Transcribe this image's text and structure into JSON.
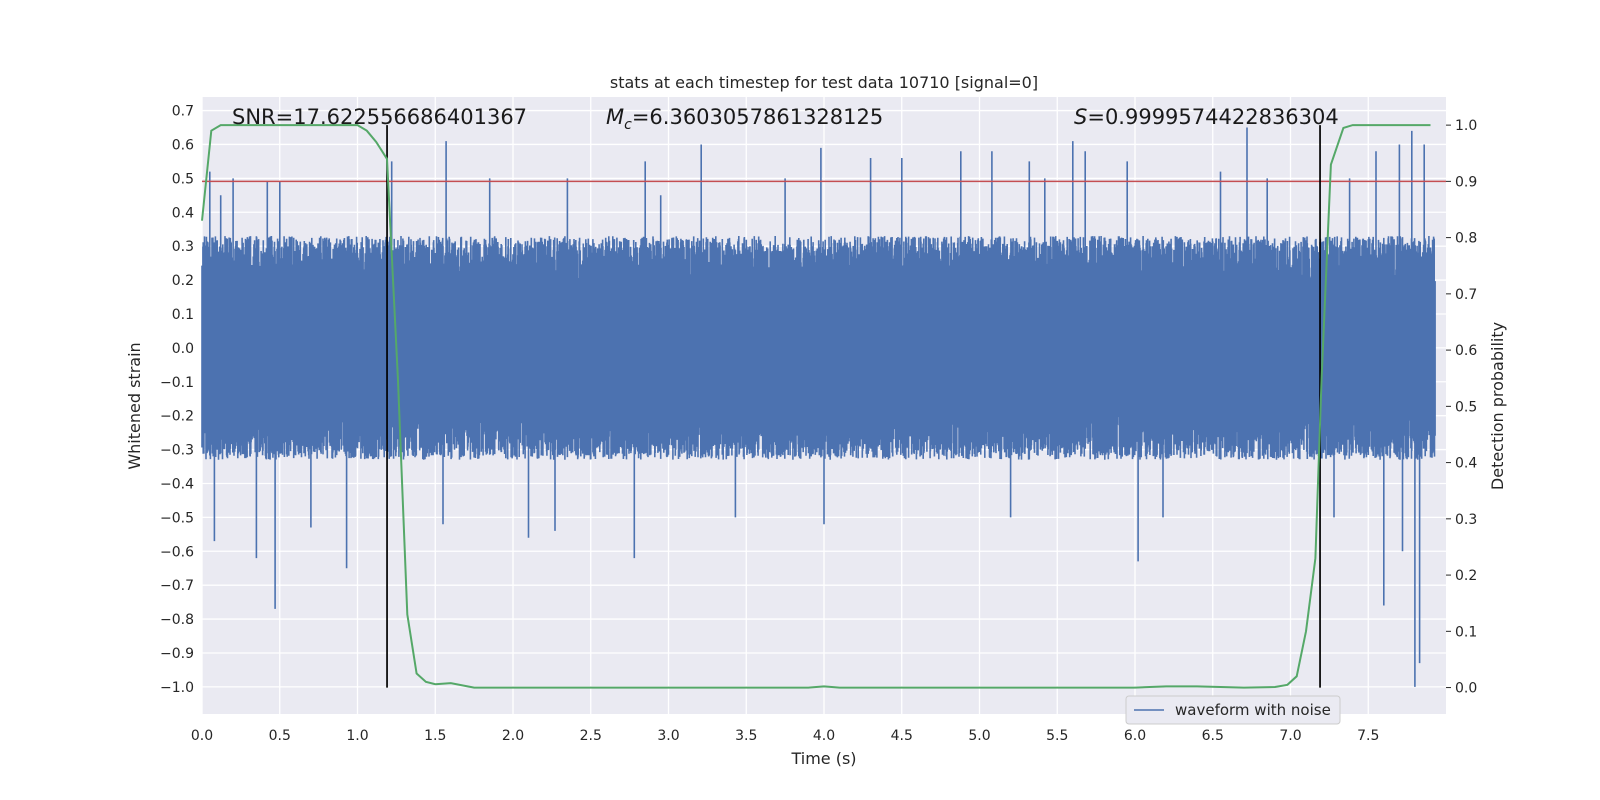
{
  "chart_data": {
    "type": "line",
    "title": "stats at each timestep for test data 10710 [signal=0]",
    "xlabel": "Time (s)",
    "ylabel_left": "Whitened strain",
    "ylabel_right": "Detection probability",
    "xlim": [
      0.0,
      8.0
    ],
    "ylim_left": [
      -1.08,
      0.74
    ],
    "ylim_right": [
      -0.047,
      1.05
    ],
    "x_ticks": [
      0.0,
      0.5,
      1.0,
      1.5,
      2.0,
      2.5,
      3.0,
      3.5,
      4.0,
      4.5,
      5.0,
      5.5,
      6.0,
      6.5,
      7.0,
      7.5
    ],
    "x_tick_labels": [
      "0.0",
      "0.5",
      "1.0",
      "1.5",
      "2.0",
      "2.5",
      "3.0",
      "3.5",
      "4.0",
      "4.5",
      "5.0",
      "5.5",
      "6.0",
      "6.5",
      "7.0",
      "7.5"
    ],
    "y_left_ticks": [
      0.7,
      0.6,
      0.5,
      0.4,
      0.3,
      0.2,
      0.1,
      0.0,
      -0.1,
      -0.2,
      -0.3,
      -0.4,
      -0.5,
      -0.6,
      -0.7,
      -0.8,
      -0.9,
      -1.0
    ],
    "y_left_tick_labels": [
      "0.7",
      "0.6",
      "0.5",
      "0.4",
      "0.3",
      "0.2",
      "0.1",
      "0.0",
      "−0.1",
      "−0.2",
      "−0.3",
      "−0.4",
      "−0.5",
      "−0.6",
      "−0.7",
      "−0.8",
      "−0.9",
      "−1.0"
    ],
    "y_right_ticks": [
      1.0,
      0.9,
      0.8,
      0.7,
      0.6,
      0.5,
      0.4,
      0.3,
      0.2,
      0.1,
      0.0
    ],
    "y_right_tick_labels": [
      "1.0",
      "0.9",
      "0.8",
      "0.7",
      "0.6",
      "0.5",
      "0.4",
      "0.3",
      "0.2",
      "0.1",
      "0.0"
    ],
    "grid": true,
    "annotations": {
      "snr": "SNR=17.622556686401367",
      "mc_symbol": "M",
      "mc_sub": "c",
      "mc_value": "=6.3603057861328125",
      "s_symbol": "S",
      "s_value": "=0.9999574422836304"
    },
    "threshold": {
      "value": 0.9,
      "axis": "right",
      "color": "#c44e52"
    },
    "vertical_markers": [
      1.19,
      7.19
    ],
    "series": [
      {
        "name": "waveform with noise",
        "axis": "left",
        "color": "#4c72b0",
        "style": "dense-noise",
        "typical_envelope": [
          -0.33,
          0.33
        ],
        "peaks": [
          [
            0.05,
            0.52
          ],
          [
            0.12,
            0.45
          ],
          [
            0.2,
            0.5
          ],
          [
            0.42,
            0.49
          ],
          [
            0.5,
            0.49
          ],
          [
            1.22,
            0.55
          ],
          [
            1.57,
            0.61
          ],
          [
            1.85,
            0.5
          ],
          [
            2.35,
            0.5
          ],
          [
            2.85,
            0.55
          ],
          [
            2.95,
            0.45
          ],
          [
            3.21,
            0.6
          ],
          [
            3.75,
            0.5
          ],
          [
            3.98,
            0.59
          ],
          [
            4.3,
            0.56
          ],
          [
            4.5,
            0.56
          ],
          [
            4.88,
            0.58
          ],
          [
            5.08,
            0.58
          ],
          [
            5.32,
            0.55
          ],
          [
            5.42,
            0.5
          ],
          [
            5.6,
            0.61
          ],
          [
            5.68,
            0.58
          ],
          [
            5.95,
            0.55
          ],
          [
            6.55,
            0.52
          ],
          [
            6.72,
            0.65
          ],
          [
            6.85,
            0.5
          ],
          [
            7.38,
            0.5
          ],
          [
            7.55,
            0.58
          ],
          [
            7.7,
            0.6
          ],
          [
            7.78,
            0.64
          ],
          [
            7.86,
            0.6
          ]
        ],
        "troughs": [
          [
            0.08,
            -0.57
          ],
          [
            0.35,
            -0.62
          ],
          [
            0.47,
            -0.77
          ],
          [
            0.7,
            -0.53
          ],
          [
            0.93,
            -0.65
          ],
          [
            1.55,
            -0.52
          ],
          [
            2.1,
            -0.56
          ],
          [
            2.27,
            -0.54
          ],
          [
            2.78,
            -0.62
          ],
          [
            3.43,
            -0.5
          ],
          [
            4.0,
            -0.52
          ],
          [
            5.2,
            -0.5
          ],
          [
            6.02,
            -0.63
          ],
          [
            6.18,
            -0.5
          ],
          [
            7.28,
            -0.5
          ],
          [
            7.6,
            -0.76
          ],
          [
            7.72,
            -0.6
          ],
          [
            7.8,
            -1.0
          ],
          [
            7.83,
            -0.93
          ]
        ]
      },
      {
        "name": "detection probability",
        "axis": "right",
        "color": "#55a868",
        "x": [
          0.0,
          0.06,
          0.12,
          0.2,
          0.5,
          0.9,
          1.0,
          1.06,
          1.12,
          1.19,
          1.26,
          1.32,
          1.38,
          1.44,
          1.5,
          1.6,
          1.75,
          2.0,
          2.5,
          3.0,
          3.5,
          3.9,
          4.0,
          4.1,
          4.5,
          5.0,
          5.5,
          6.0,
          6.2,
          6.4,
          6.55,
          6.7,
          6.9,
          6.98,
          7.04,
          7.1,
          7.16,
          7.2,
          7.26,
          7.34,
          7.4,
          7.5,
          7.7,
          7.9
        ],
        "y": [
          0.83,
          0.99,
          1.0,
          1.0,
          1.0,
          1.0,
          1.0,
          0.99,
          0.97,
          0.94,
          0.55,
          0.13,
          0.025,
          0.01,
          0.006,
          0.008,
          0.0,
          0.0,
          0.0,
          0.0,
          0.0,
          0.0,
          0.002,
          0.0,
          0.0,
          0.0,
          0.0,
          0.0,
          0.002,
          0.002,
          0.001,
          0.0,
          0.001,
          0.005,
          0.02,
          0.1,
          0.23,
          0.55,
          0.93,
          0.995,
          1.0,
          1.0,
          1.0,
          1.0
        ]
      }
    ],
    "legend": {
      "placement": "lower-right",
      "entries": [
        {
          "label": "waveform with noise",
          "color": "#4c72b0"
        }
      ]
    }
  }
}
